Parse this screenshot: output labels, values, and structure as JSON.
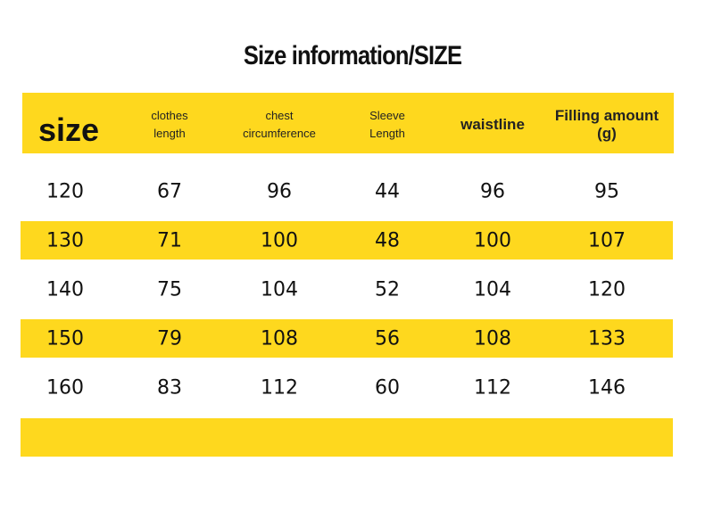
{
  "title": "Size information/SIZE",
  "table": {
    "header": [
      "size",
      "clothes length",
      "chest circumference",
      "Sleeve Length",
      "waistline",
      "Filling amount (g)"
    ],
    "rows": [
      [
        120,
        67,
        96,
        44,
        96,
        95
      ],
      [
        130,
        71,
        100,
        48,
        100,
        107
      ],
      [
        140,
        75,
        104,
        52,
        104,
        120
      ],
      [
        150,
        79,
        108,
        56,
        108,
        133
      ],
      [
        160,
        83,
        112,
        60,
        112,
        146
      ]
    ]
  }
}
